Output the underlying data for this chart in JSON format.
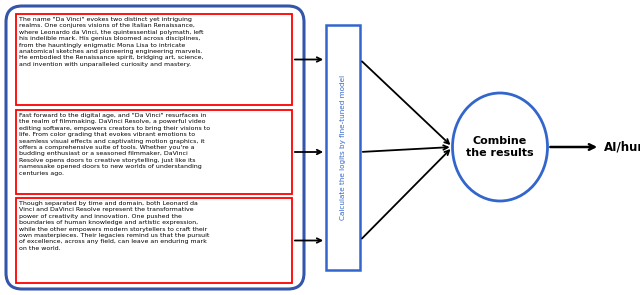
{
  "text_box1": "The name \"Da Vinci\" evokes two distinct yet intriguing\nrealms. One conjures visions of the Italian Renaissance,\nwhere Leonardo da Vinci, the quintessential polymath, left\nhis indelible mark. His genius bloomed across disciplines,\nfrom the hauntingly enigmatic Mona Lisa to intricate\nanatomical sketches and pioneering engineering marvels.\nHe embodied the Renaissance spirit, bridging art, science,\nand invention with unparalleled curiosity and mastery.",
  "text_box2": "Fast forward to the digital age, and \"Da Vinci\" resurfaces in\nthe realm of filmmaking. DaVinci Resolve, a powerful video\nediting software, empowers creators to bring their visions to\nlife. From color grading that evokes vibrant emotions to\nseamless visual effects and captivating motion graphics, it\noffers a comprehensive suite of tools. Whether you're a\nbudding enthusiast or a seasoned filmmaker, DaVinci\nResolve opens doors to creative storytelling, just like its\nnamessake opened doors to new worlds of understanding\ncenturies ago.",
  "text_box3": "Though separated by time and domain, both Leonard da\nVinci and DaVinci Resolve represent the transformative\npower of creativity and innovation. One pushed the\nboundaries of human knowledge and artistic expression,\nwhile the other empowers modern storytellers to craft their\nown masterpieces. Their legacies remind us that the pursuit\nof excellence, across any field, can leave an enduring mark\non the world.",
  "middle_label": "Calculate the logits by fine-tuned model",
  "circle_label": "Combine\nthe results",
  "output_label": "AI/human",
  "outer_box_color": "#3355aa",
  "red_box_color": "#ff0000",
  "middle_box_color": "#3366cc",
  "circle_color": "#3366cc",
  "text_color": "#000000",
  "bg_color": "#ffffff",
  "arrow_color": "#000000",
  "mid_label_color": "#3366cc"
}
